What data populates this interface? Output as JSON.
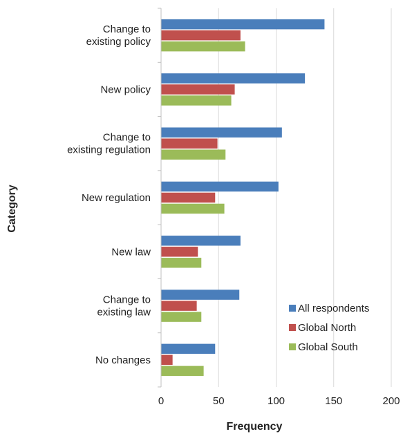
{
  "chart_data": {
    "type": "bar",
    "orientation": "horizontal",
    "categories": [
      [
        "Change to",
        "existing policy"
      ],
      [
        "New policy"
      ],
      [
        "Change to",
        "existing regulation"
      ],
      [
        "New regulation"
      ],
      [
        "New law"
      ],
      [
        "Change to",
        "existing law"
      ],
      [
        "No changes"
      ]
    ],
    "series": [
      {
        "name": "All respondents",
        "color": "#4a7ebb",
        "values": [
          142,
          125,
          105,
          102,
          69,
          68,
          47
        ]
      },
      {
        "name": "Global North",
        "color": "#c0504d",
        "values": [
          69,
          64,
          49,
          47,
          32,
          31,
          10
        ]
      },
      {
        "name": "Global South",
        "color": "#9bbb59",
        "values": [
          73,
          61,
          56,
          55,
          35,
          35,
          37
        ]
      }
    ],
    "xlabel": "Frequency",
    "ylabel": "Category",
    "xlim": [
      0,
      200
    ],
    "xticks": [
      0,
      50,
      100,
      150,
      200
    ],
    "grid": true,
    "legend_position": "bottom-right"
  }
}
